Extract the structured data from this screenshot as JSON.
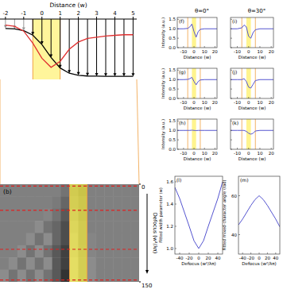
{
  "chart_data": [
    {
      "type": "line",
      "title": "Distance (w)",
      "x": [
        -2,
        -1.5,
        -1,
        -0.5,
        0,
        0.5,
        1,
        1.5,
        2,
        2.5,
        3,
        3.5,
        4,
        4.5,
        5
      ],
      "series": [
        {
          "color": "#000000",
          "marker": "arrow",
          "values": [
            0.845,
            0.836,
            0.808,
            0.734,
            0.578,
            0.363,
            0.189,
            0.102,
            0.068,
            0.056,
            0.053,
            0.05,
            0.05,
            0.05,
            0.05
          ]
        },
        {
          "color": "#e03030",
          "values": [
            0.9,
            0.88,
            0.8,
            0.6,
            0.35,
            0.2,
            0.3,
            0.5,
            0.62,
            0.68,
            0.7,
            0.72,
            0.73,
            0.74,
            0.74
          ]
        }
      ],
      "xlim": [
        -2.3,
        5.2
      ],
      "xticks": [
        -2,
        -1,
        0,
        1,
        2,
        3,
        4,
        5
      ],
      "ylim": [
        0,
        1
      ],
      "tick_labels": "x",
      "band": [
        -0.5,
        1
      ]
    },
    {
      "type": "heatmap",
      "title": "(b)",
      "y_label": "Defocus (w²/λπ)",
      "xlim": [
        -8,
        8
      ],
      "ylim": [
        0,
        150
      ],
      "yticks": [
        0,
        150
      ],
      "tick_labels": "y",
      "band": [
        0,
        2
      ],
      "lines": [
        3,
        40,
        100,
        147
      ],
      "cells": [
        [
          0.5,
          0.5,
          0.5,
          0.5,
          0.5,
          0.5,
          0.5,
          0.45,
          0.6,
          0.5,
          0.5,
          0.5,
          0.5,
          0.5,
          0.5,
          0.5
        ],
        [
          0.5,
          0.5,
          0.5,
          0.5,
          0.5,
          0.5,
          0.48,
          0.4,
          0.65,
          0.55,
          0.5,
          0.5,
          0.5,
          0.5,
          0.5,
          0.5
        ],
        [
          0.5,
          0.5,
          0.5,
          0.5,
          0.5,
          0.52,
          0.45,
          0.35,
          0.7,
          0.55,
          0.5,
          0.5,
          0.5,
          0.5,
          0.5,
          0.5
        ],
        [
          0.5,
          0.5,
          0.5,
          0.5,
          0.55,
          0.45,
          0.4,
          0.3,
          0.75,
          0.6,
          0.5,
          0.5,
          0.5,
          0.5,
          0.5,
          0.5
        ],
        [
          0.5,
          0.5,
          0.5,
          0.55,
          0.45,
          0.55,
          0.4,
          0.3,
          0.8,
          0.6,
          0.52,
          0.5,
          0.5,
          0.5,
          0.5,
          0.5
        ],
        [
          0.5,
          0.5,
          0.55,
          0.45,
          0.55,
          0.45,
          0.35,
          0.25,
          0.8,
          0.62,
          0.52,
          0.5,
          0.5,
          0.5,
          0.5,
          0.5
        ],
        [
          0.5,
          0.55,
          0.45,
          0.55,
          0.45,
          0.55,
          0.35,
          0.25,
          0.85,
          0.65,
          0.55,
          0.5,
          0.5,
          0.5,
          0.5,
          0.5
        ],
        [
          0.55,
          0.45,
          0.55,
          0.45,
          0.55,
          0.45,
          0.35,
          0.2,
          0.85,
          0.65,
          0.55,
          0.5,
          0.5,
          0.5,
          0.5,
          0.5
        ]
      ]
    },
    {
      "type": "line",
      "title": "(f)",
      "subtitle": "θ=0°",
      "x_label": "Distance (w)",
      "y_label": "Intensity (a.u.)",
      "x": [
        -16,
        -10,
        -6,
        -4,
        -2,
        0,
        2,
        4,
        6,
        10,
        22
      ],
      "series": [
        {
          "color": "#5555d0",
          "values": [
            1,
            1,
            1.02,
            1.1,
            1.25,
            0.85,
            0.55,
            0.85,
            0.97,
            1,
            1
          ]
        }
      ],
      "xlim": [
        -16,
        22
      ],
      "xticks": [
        -10,
        0,
        10,
        20
      ],
      "ylim": [
        0,
        1.6
      ],
      "yticks": [
        {
          "value": 0,
          "label": "0.0"
        },
        0.5,
        {
          "value": 1,
          "label": "1.0"
        },
        1.5
      ],
      "band": [
        -2,
        2
      ],
      "lines": [
        -6,
        6
      ]
    },
    {
      "type": "line",
      "title": "(g)",
      "x_label": "Distance (w)",
      "y_label": "Intensity (a.u.)",
      "x": [
        -16,
        -10,
        -6,
        -4,
        -2,
        0,
        2,
        4,
        6,
        10,
        22
      ],
      "series": [
        {
          "color": "#5555d0",
          "values": [
            1,
            1,
            1.01,
            1.05,
            1.12,
            0.9,
            0.72,
            0.9,
            0.98,
            1,
            1
          ]
        }
      ],
      "xlim": [
        -16,
        22
      ],
      "xticks": [
        -10,
        0,
        10,
        20
      ],
      "ylim": [
        0,
        1.6
      ],
      "yticks": [
        {
          "value": 0,
          "label": "0.0"
        },
        0.5,
        {
          "value": 1,
          "label": "1.0"
        },
        1.5
      ],
      "band": [
        -2,
        2
      ],
      "lines": [
        -6,
        6
      ]
    },
    {
      "type": "line",
      "title": "(h)",
      "x_label": "Distance (w)",
      "y_label": "Intensity (a.u.)",
      "x": [
        -16,
        -10,
        -6,
        -4,
        -2,
        0,
        2,
        4,
        6,
        10,
        22
      ],
      "series": [
        {
          "color": "#5555d0",
          "values": [
            1,
            1,
            1,
            1,
            1.01,
            1,
            0.99,
            1,
            1,
            1,
            1
          ]
        }
      ],
      "xlim": [
        -16,
        22
      ],
      "xticks": [
        -10,
        0,
        10,
        20
      ],
      "ylim": [
        0,
        1.6
      ],
      "yticks": [
        {
          "value": 0,
          "label": "0.0"
        },
        0.5,
        {
          "value": 1,
          "label": "1.0"
        },
        1.5
      ],
      "band": [
        -2,
        2
      ],
      "lines": [
        -6,
        6
      ]
    },
    {
      "type": "line",
      "title": "(i)",
      "subtitle": "θ=30°",
      "x_label": "Distance (w)",
      "x": [
        -16,
        -10,
        -6,
        -4,
        -2,
        0,
        2,
        4,
        6,
        10,
        22
      ],
      "series": [
        {
          "color": "#5555d0",
          "values": [
            1,
            1,
            1.05,
            1.2,
            1.1,
            0.6,
            0.5,
            0.8,
            0.95,
            1,
            1
          ]
        }
      ],
      "xlim": [
        -16,
        22
      ],
      "xticks": [
        -10,
        0,
        10,
        20
      ],
      "ylim": [
        0,
        1.6
      ],
      "yticks": [
        0,
        0.5,
        1,
        1.5
      ],
      "tick_labels": "x",
      "band": [
        -2,
        2
      ],
      "lines": [
        -6,
        6
      ]
    },
    {
      "type": "line",
      "title": "(j)",
      "x_label": "Distance (w)",
      "x": [
        -16,
        -10,
        -6,
        -4,
        -2,
        0,
        2,
        4,
        6,
        10,
        22
      ],
      "series": [
        {
          "color": "#5555d0",
          "values": [
            1,
            1,
            1,
            1.05,
            0.9,
            0.6,
            0.55,
            0.75,
            0.95,
            1,
            1
          ]
        }
      ],
      "xlim": [
        -16,
        22
      ],
      "xticks": [
        -10,
        0,
        10,
        20
      ],
      "ylim": [
        0,
        1.6
      ],
      "yticks": [
        0,
        0.5,
        1,
        1.5
      ],
      "tick_labels": "x",
      "band": [
        -2,
        2
      ],
      "lines": [
        -6,
        6
      ]
    },
    {
      "type": "line",
      "title": "(k)",
      "x_label": "Distance (w)",
      "x": [
        -16,
        -10,
        -6,
        -4,
        -2,
        0,
        2,
        4,
        6,
        10,
        22
      ],
      "series": [
        {
          "color": "#5555d0",
          "values": [
            1,
            1,
            1,
            1,
            0.95,
            0.85,
            0.8,
            0.85,
            0.97,
            1,
            1
          ]
        }
      ],
      "xlim": [
        -16,
        22
      ],
      "xticks": [
        -10,
        0,
        10,
        20
      ],
      "ylim": [
        0,
        1.6
      ],
      "yticks": [
        0,
        0.5,
        1,
        1.5
      ],
      "tick_labels": "x",
      "band": [
        -2,
        2
      ],
      "lines": [
        -6,
        6
      ]
    },
    {
      "type": "line",
      "title": "(l)",
      "x_label": "Defocus (w²/λπ)",
      "y_label": "Fitted width parameter (w)",
      "x": [
        -50,
        -40,
        -20,
        -10,
        0,
        10,
        20,
        40,
        50
      ],
      "series": [
        {
          "color": "#5555d0",
          "values": [
            1.55,
            1.45,
            1.2,
            1.07,
            1.0,
            1.07,
            1.2,
            1.45,
            1.6
          ]
        }
      ],
      "xlim": [
        -50,
        50
      ],
      "xticks": [
        -40,
        -20,
        0,
        20,
        40
      ],
      "ylim": [
        0.95,
        1.65
      ],
      "yticks": [
        {
          "value": 1,
          "label": "1.0"
        },
        1.2,
        1.4,
        1.6
      ]
    },
    {
      "type": "line",
      "title": "(m)",
      "x_label": "Defocus (w²/λπ)",
      "y_label": "Fitted mixed-character angle (rad)",
      "x": [
        -50,
        -40,
        -20,
        -10,
        0,
        10,
        20,
        40,
        50
      ],
      "series": [
        {
          "color": "#5555d0",
          "values": [
            45,
            48,
            55,
            58,
            60,
            58,
            55,
            48,
            44
          ]
        }
      ],
      "xlim": [
        -50,
        50
      ],
      "xticks": [
        -40,
        -20,
        0,
        20,
        40
      ],
      "ylim": [
        30,
        70
      ],
      "yticks": [
        40,
        60
      ]
    }
  ]
}
